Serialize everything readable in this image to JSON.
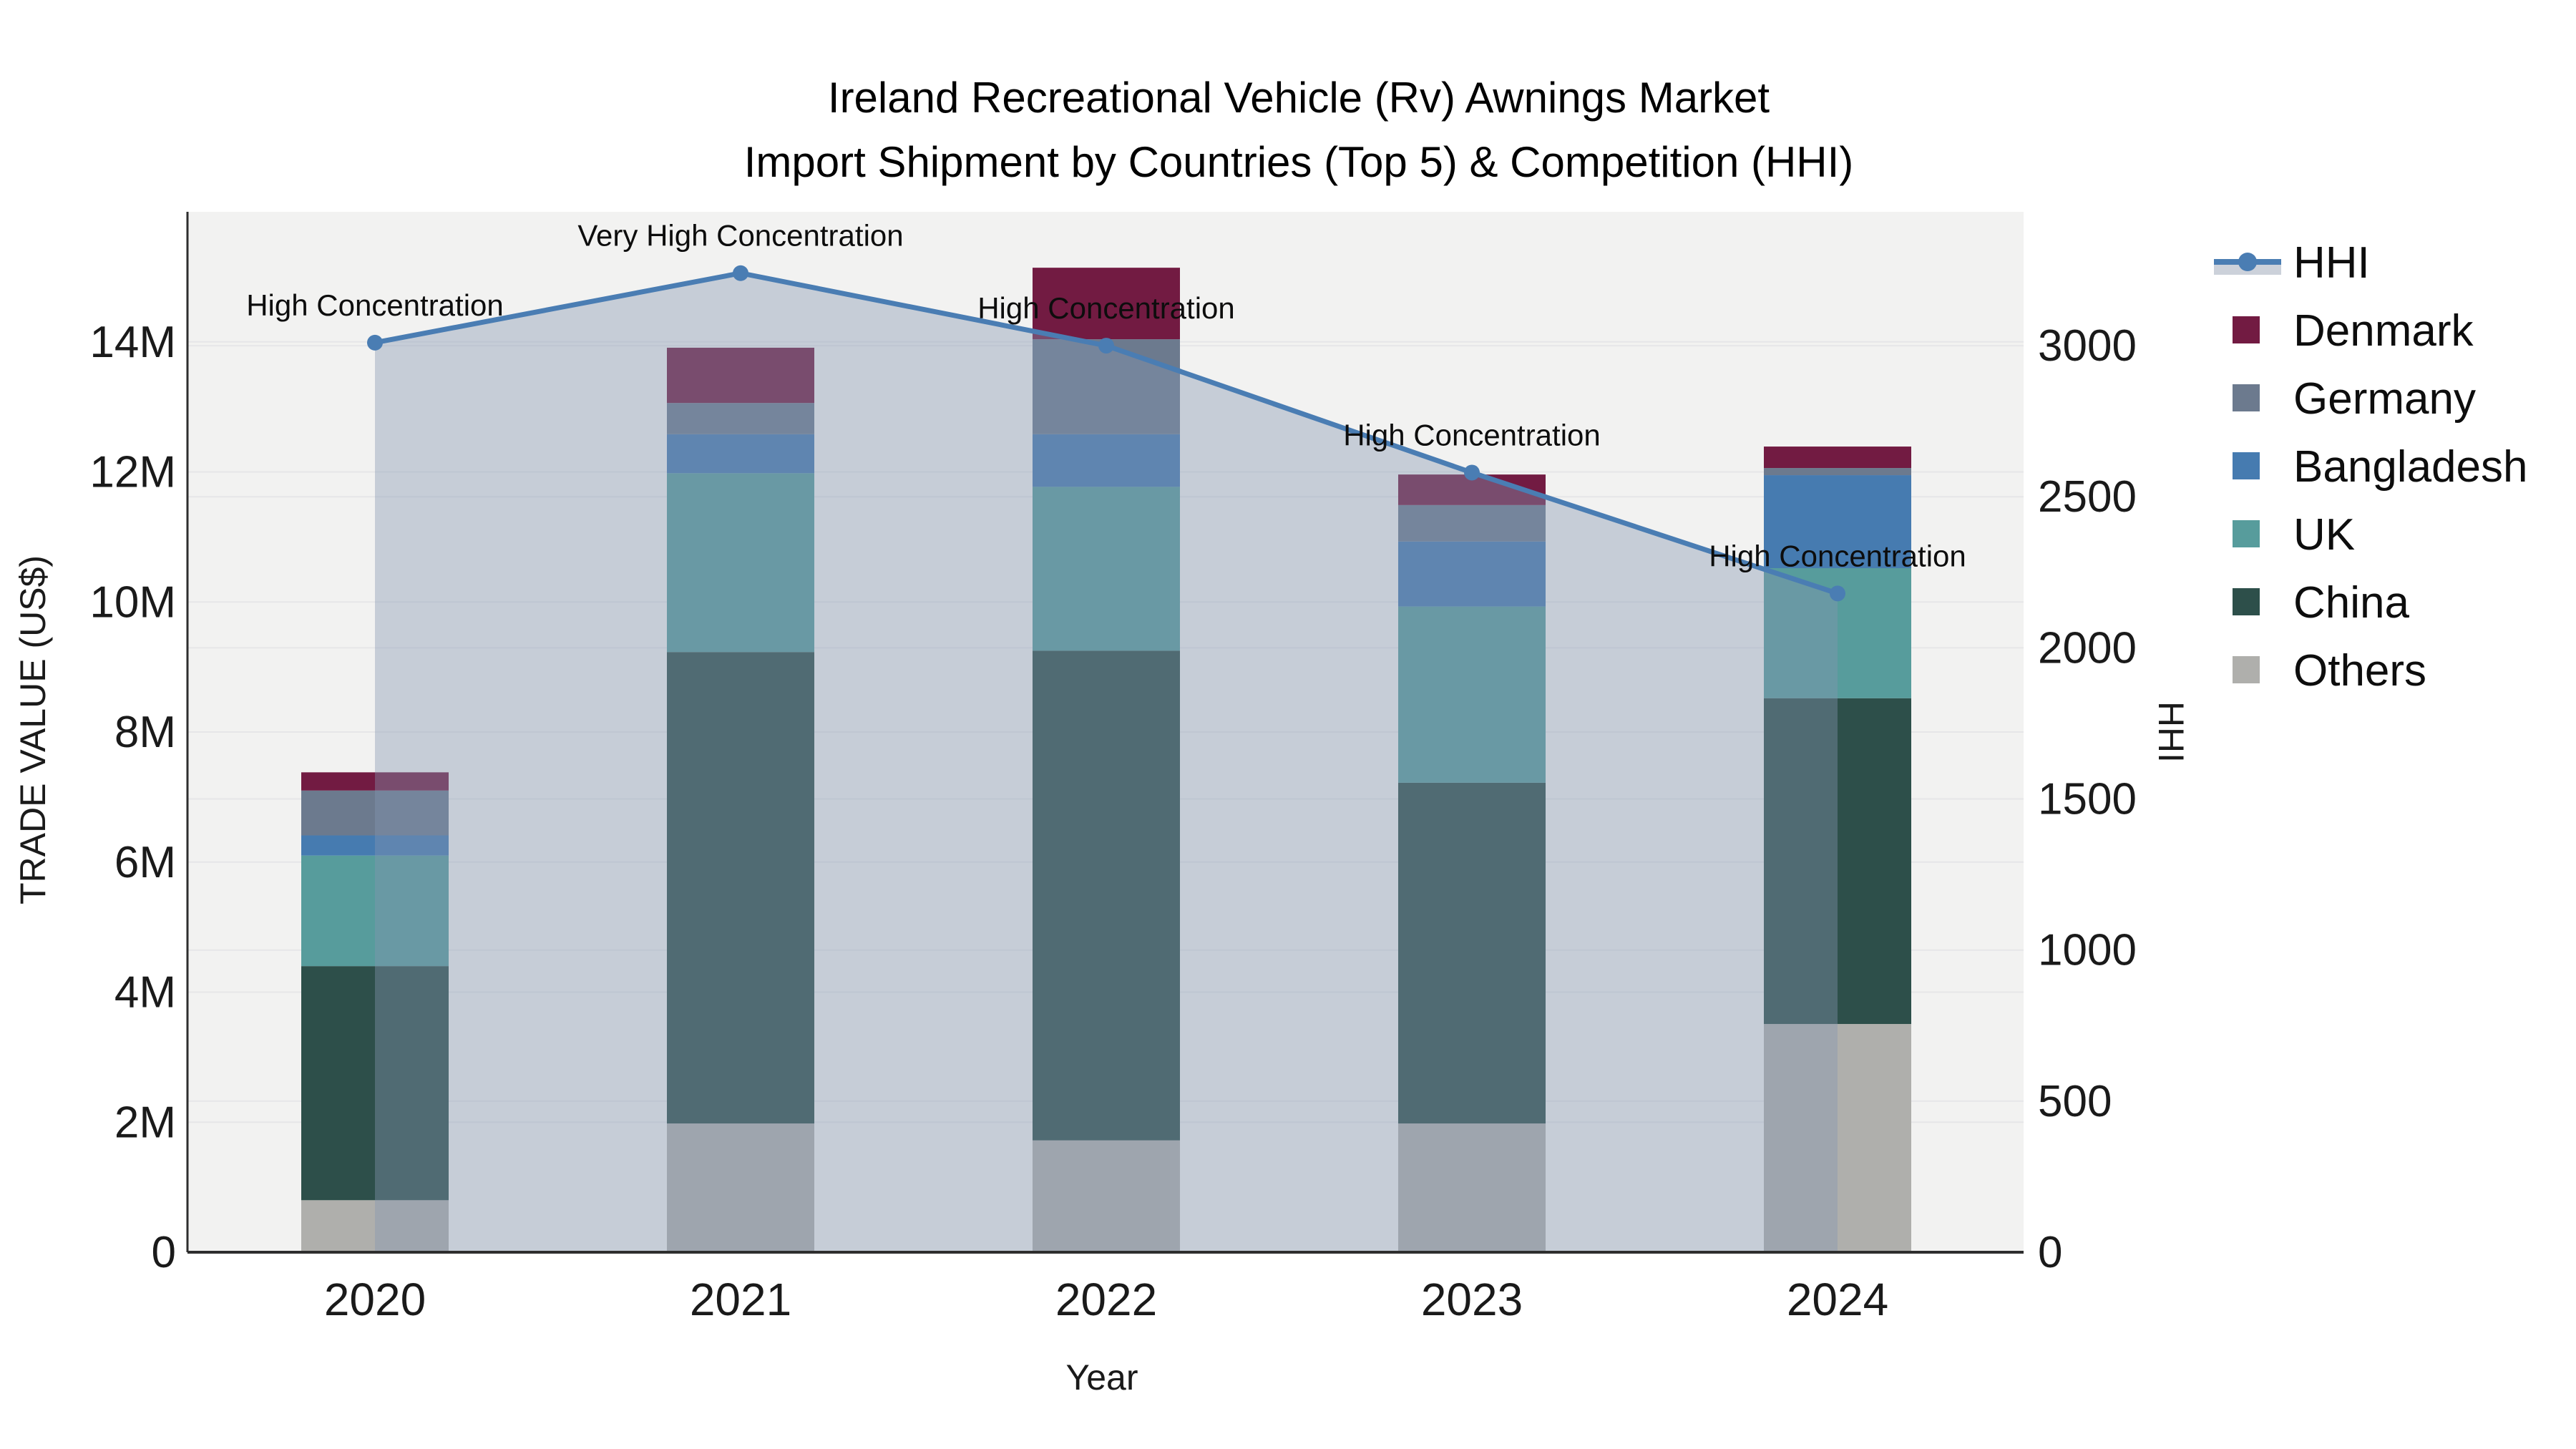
{
  "title": {
    "line1": "Ireland Recreational Vehicle (Rv) Awnings Market",
    "line2": "Import Shipment by Countries (Top 5) & Competition (HHI)"
  },
  "axis": {
    "x_label": "Year",
    "y_left_label": "TRADE VALUE (US$)",
    "y_right_label": "HHI",
    "y_left_ticks": [
      "0",
      "2M",
      "4M",
      "6M",
      "8M",
      "10M",
      "12M",
      "14M"
    ],
    "y_right_ticks": [
      "0",
      "500",
      "1000",
      "1500",
      "2000",
      "2500",
      "3000"
    ]
  },
  "legend": {
    "items": [
      {
        "label": "HHI",
        "type": "line",
        "color": "#4A7DB3"
      },
      {
        "label": "Denmark",
        "type": "swatch",
        "color": "#721B42"
      },
      {
        "label": "Germany",
        "type": "swatch",
        "color": "#6C7A8E"
      },
      {
        "label": "Bangladesh",
        "type": "swatch",
        "color": "#467BB0"
      },
      {
        "label": "UK",
        "type": "swatch",
        "color": "#579C9C"
      },
      {
        "label": "China",
        "type": "swatch",
        "color": "#2D4F4A"
      },
      {
        "label": "Others",
        "type": "swatch",
        "color": "#AFAFAC"
      }
    ]
  },
  "chart_data": {
    "type": "bar",
    "subtype": "stacked-bars-with-line-overlay",
    "categories": [
      "2020",
      "2021",
      "2022",
      "2023",
      "2024"
    ],
    "bar_value_unit": "million US$",
    "series": [
      {
        "name": "Others",
        "color": "#AFAFAC",
        "values": [
          0.8,
          1.98,
          1.72,
          1.98,
          3.51
        ]
      },
      {
        "name": "China",
        "color": "#2D4F4A",
        "values": [
          3.6,
          7.25,
          7.53,
          5.24,
          5.01
        ]
      },
      {
        "name": "UK",
        "color": "#579C9C",
        "values": [
          1.7,
          2.75,
          2.52,
          2.71,
          2.0
        ]
      },
      {
        "name": "Bangladesh",
        "color": "#467BB0",
        "values": [
          0.31,
          0.6,
          0.81,
          1.0,
          1.43
        ]
      },
      {
        "name": "Germany",
        "color": "#6C7A8E",
        "values": [
          0.69,
          0.48,
          1.46,
          0.56,
          0.11
        ]
      },
      {
        "name": "Denmark",
        "color": "#721B42",
        "values": [
          0.28,
          0.85,
          1.1,
          0.47,
          0.33
        ]
      }
    ],
    "line_series": {
      "name": "HHI",
      "axis": "right",
      "color": "#4A7DB3",
      "area_fill": "rgba(133,150,178,0.40)",
      "values": [
        3010,
        3240,
        3000,
        2580,
        2180
      ]
    },
    "annotations": [
      {
        "x": "2020",
        "text": "High Concentration"
      },
      {
        "x": "2021",
        "text": "Very High Concentration"
      },
      {
        "x": "2022",
        "text": "High Concentration"
      },
      {
        "x": "2023",
        "text": "High Concentration"
      },
      {
        "x": "2024",
        "text": "High Concentration"
      }
    ],
    "title": "Ireland Recreational Vehicle (Rv) Awnings Market Import Shipment by Countries (Top 5) & Competition (HHI)",
    "xlabel": "Year",
    "ylabel_left": "TRADE VALUE (US$)",
    "ylabel_right": "HHI",
    "ylim_left": [
      0,
      16000000
    ],
    "ylim_right": [
      0,
      3443
    ],
    "grid": true,
    "legend_position": "right"
  },
  "colors": {
    "plot_bg": "#F2F2F1",
    "grid": "#E6E6E8",
    "spine": "#2E2E2E",
    "tick_text": "#1A1A1A",
    "annotation_text": "#0D0D0D",
    "legend_band": "#CCD1DA"
  }
}
